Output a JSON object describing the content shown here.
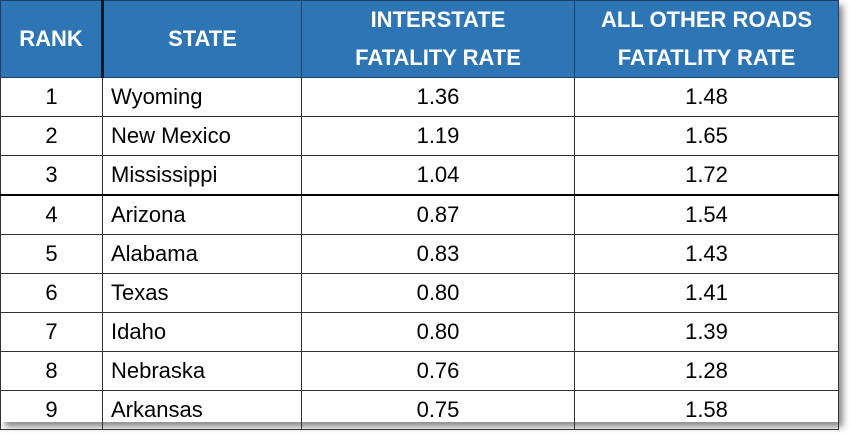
{
  "chart_data": {
    "type": "table",
    "columns": [
      "RANK",
      "STATE",
      "INTERSTATE FATALITY RATE",
      "ALL OTHER ROADS FATATLITY RATE"
    ],
    "header_lines": {
      "rank": "RANK",
      "state": "STATE",
      "interstate_line1": "INTERSTATE",
      "interstate_line2": "FATALITY RATE",
      "other_line1": "ALL OTHER ROADS",
      "other_line2": "FATATLITY RATE"
    },
    "rows": [
      {
        "rank": "1",
        "state": "Wyoming",
        "interstate": "1.36",
        "other": "1.48"
      },
      {
        "rank": "2",
        "state": "New Mexico",
        "interstate": "1.19",
        "other": "1.65"
      },
      {
        "rank": "3",
        "state": "Mississippi",
        "interstate": "1.04",
        "other": "1.72"
      },
      {
        "rank": "4",
        "state": "Arizona",
        "interstate": "0.87",
        "other": "1.54"
      },
      {
        "rank": "5",
        "state": "Alabama",
        "interstate": "0.83",
        "other": "1.43"
      },
      {
        "rank": "6",
        "state": "Texas",
        "interstate": "0.80",
        "other": "1.41"
      },
      {
        "rank": "7",
        "state": "Idaho",
        "interstate": "0.80",
        "other": "1.39"
      },
      {
        "rank": "8",
        "state": "Nebraska",
        "interstate": "0.76",
        "other": "1.28"
      },
      {
        "rank": "9",
        "state": "Arkansas",
        "interstate": "0.75",
        "other": "1.58"
      }
    ]
  },
  "colors": {
    "header_bg": "#2E75B6",
    "header_text": "#ffffff",
    "body_text": "#000000"
  }
}
